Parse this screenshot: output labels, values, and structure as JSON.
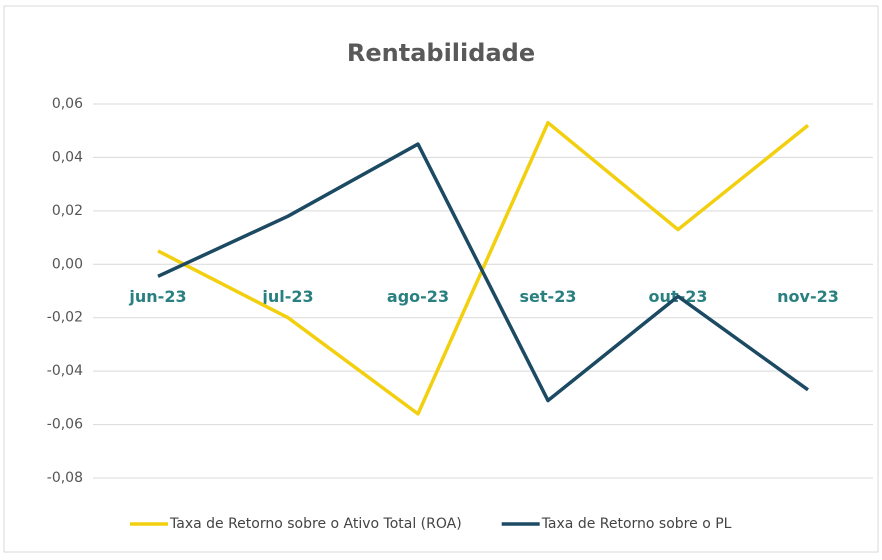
{
  "chart_data": {
    "type": "line",
    "title": "Rentabilidade",
    "categories": [
      "jun-23",
      "jul-23",
      "ago-23",
      "set-23",
      "out-23",
      "nov-23"
    ],
    "series": [
      {
        "name": "Taxa de Retorno sobre o Ativo Total (ROA)",
        "color": "#f2d00f",
        "values": [
          0.005,
          -0.02,
          -0.056,
          0.053,
          0.013,
          0.052
        ]
      },
      {
        "name": "Taxa de Retorno sobre o PL",
        "color": "#1b4a62",
        "values": [
          -0.0045,
          0.018,
          0.045,
          -0.051,
          -0.012,
          -0.047
        ]
      }
    ],
    "ylim": [
      -0.08,
      0.06
    ],
    "yticks": [
      {
        "value": -0.08,
        "label": "-0,08"
      },
      {
        "value": -0.06,
        "label": "-0,06"
      },
      {
        "value": -0.04,
        "label": "-0,04"
      },
      {
        "value": -0.02,
        "label": "-0,02"
      },
      {
        "value": 0,
        "label": "0,00"
      },
      {
        "value": 0.02,
        "label": "0,02"
      },
      {
        "value": 0.04,
        "label": "0,04"
      },
      {
        "value": 0.06,
        "label": "0,06"
      }
    ],
    "grid": true,
    "legend": "bottom"
  }
}
